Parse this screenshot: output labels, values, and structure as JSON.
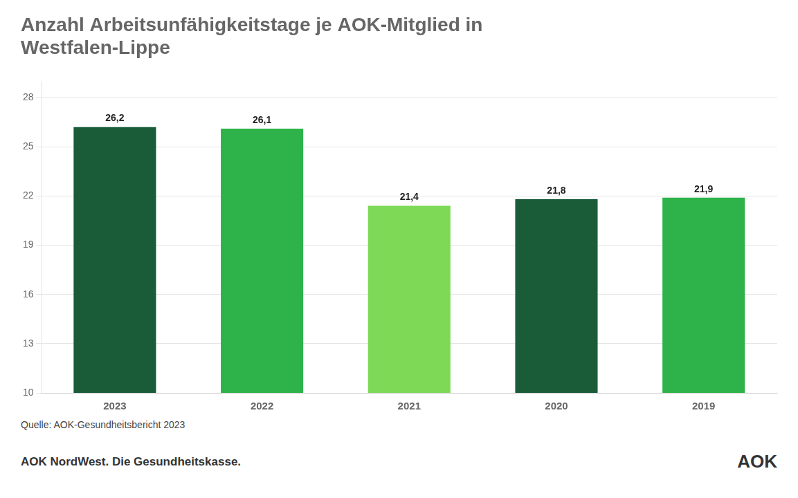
{
  "chart_data": {
    "type": "bar",
    "title": [
      "Anzahl Arbeitsunfähigkeitstage je AOK-Mitglied in",
      "Westfalen-Lippe"
    ],
    "categories": [
      "2023",
      "2022",
      "2021",
      "2020",
      "2019"
    ],
    "values": [
      26.2,
      26.1,
      21.4,
      21.8,
      21.9
    ],
    "value_labels": [
      "26,2",
      "26,1",
      "21,4",
      "21,8",
      "21,9"
    ],
    "data_labels": true,
    "colors": [
      "#1a5c38",
      "#2db34a",
      "#7ed957",
      "#1a5c38",
      "#2db34a"
    ],
    "ylim": [
      10,
      29
    ],
    "yticks": [
      10,
      13,
      16,
      19,
      22,
      25,
      28
    ],
    "grid": true,
    "annotations": [
      "Quelle: AOK-Gesundheitsbericht  2023",
      "AOK NordWest. Die Gesundheitskasse.",
      "AOK"
    ]
  }
}
